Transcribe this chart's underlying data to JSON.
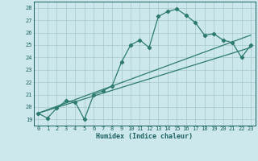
{
  "xlabel": "Humidex (Indice chaleur)",
  "ylabel": "",
  "bg_color": "#cce8ec",
  "grid_color": "#aacdd4",
  "line_color": "#2d7b6e",
  "xlim": [
    -0.5,
    23.5
  ],
  "ylim": [
    18.5,
    28.5
  ],
  "yticks": [
    19,
    20,
    21,
    22,
    23,
    24,
    25,
    26,
    27,
    28
  ],
  "xticks": [
    0,
    1,
    2,
    3,
    4,
    5,
    6,
    7,
    8,
    9,
    10,
    11,
    12,
    13,
    14,
    15,
    16,
    17,
    18,
    19,
    20,
    21,
    22,
    23
  ],
  "series1_x": [
    0,
    1,
    2,
    3,
    4,
    5,
    6,
    7,
    8,
    9,
    10,
    11,
    12,
    13,
    14,
    15,
    16,
    17,
    18,
    19,
    20,
    21,
    22,
    23
  ],
  "series1_y": [
    19.5,
    19.1,
    19.9,
    20.5,
    20.4,
    19.0,
    21.0,
    21.3,
    21.7,
    23.6,
    25.0,
    25.4,
    24.8,
    27.3,
    27.7,
    27.9,
    27.4,
    26.8,
    25.8,
    25.9,
    25.4,
    25.2,
    24.0,
    25.0
  ],
  "line2_x": [
    0,
    23
  ],
  "line2_y": [
    19.5,
    25.8
  ],
  "line3_x": [
    0,
    23
  ],
  "line3_y": [
    19.5,
    24.8
  ]
}
